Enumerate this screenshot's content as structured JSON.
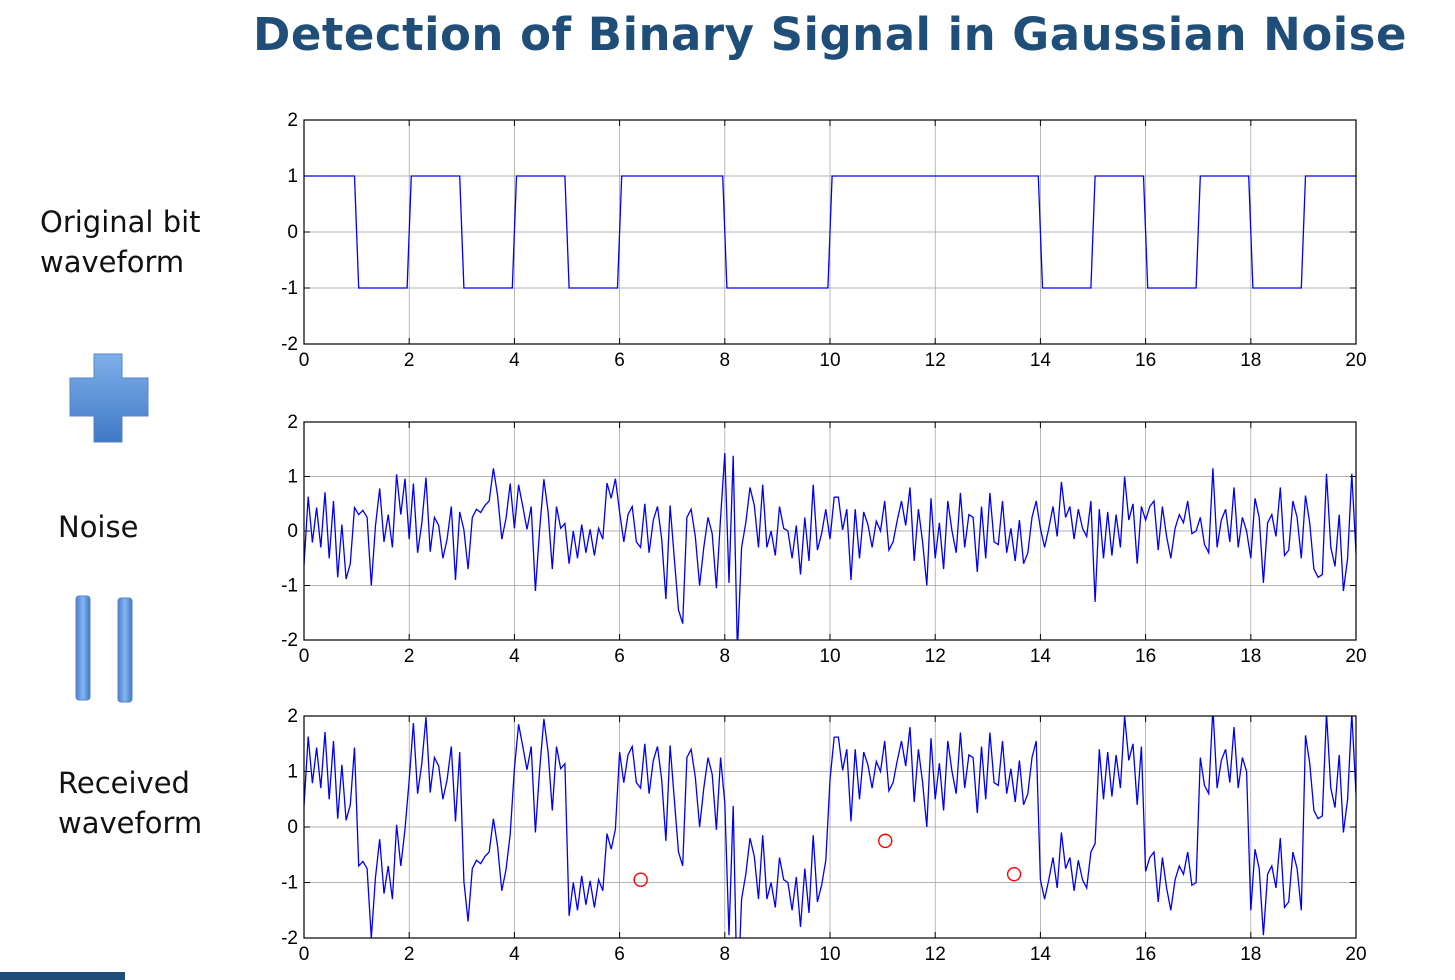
{
  "title": "Detection of Binary Signal in Gaussian Noise",
  "labels": {
    "original_line1": "Original bit",
    "original_line2": "waveform",
    "noise": "Noise",
    "received_line1": "Received",
    "received_line2": "waveform"
  },
  "colors": {
    "title": "#1f4e79",
    "trace": "#0000ee",
    "marker": "#ff0000",
    "symbol": "#5b8fd6"
  },
  "icons": [
    "plus-icon",
    "equals-icon"
  ],
  "chart_data": [
    {
      "type": "line",
      "name": "original",
      "xlim": [
        0,
        20
      ],
      "ylim": [
        -2,
        2
      ],
      "xticks": [
        0,
        2,
        4,
        6,
        8,
        10,
        12,
        14,
        16,
        18,
        20
      ],
      "yticks": [
        2,
        1,
        0,
        -1,
        -2
      ],
      "grid": true,
      "bits": [
        1,
        -1,
        1,
        -1,
        1,
        -1,
        1,
        1,
        -1,
        -1,
        1,
        1,
        1,
        1,
        -1,
        1,
        -1,
        1,
        -1,
        1
      ],
      "x": [
        0,
        0.96,
        1.04,
        1.96,
        2.04,
        2.96,
        3.04,
        3.96,
        4.04,
        4.96,
        5.04,
        5.96,
        6.04,
        7.96,
        8.04,
        9.96,
        10.04,
        13.96,
        14.04,
        14.96,
        15.04,
        15.96,
        16.04,
        16.96,
        17.04,
        17.96,
        18.04,
        18.96,
        19.04,
        20
      ],
      "y": [
        1,
        1,
        -1,
        -1,
        1,
        1,
        -1,
        -1,
        1,
        1,
        -1,
        -1,
        1,
        1,
        -1,
        -1,
        1,
        1,
        -1,
        -1,
        1,
        1,
        -1,
        -1,
        1,
        1,
        -1,
        -1,
        1,
        1
      ]
    },
    {
      "type": "line",
      "name": "noise",
      "xlim": [
        0,
        20
      ],
      "ylim": [
        -2,
        2
      ],
      "xticks": [
        0,
        2,
        4,
        6,
        8,
        10,
        12,
        14,
        16,
        18,
        20
      ],
      "yticks": [
        2,
        1,
        0,
        -1,
        -2
      ],
      "grid": true,
      "x_start": 0,
      "x_step": 0.08,
      "values": [
        -0.62,
        0.63,
        -0.21,
        0.43,
        -0.3,
        0.71,
        -0.5,
        0.55,
        -0.85,
        0.12,
        -0.88,
        -0.6,
        0.43,
        0.3,
        0.38,
        0.25,
        -1.0,
        0.1,
        0.78,
        -0.2,
        0.3,
        -0.3,
        1.04,
        0.3,
        0.96,
        -0.15,
        0.87,
        -0.4,
        0.14,
        0.98,
        -0.38,
        0.25,
        0.1,
        -0.5,
        -0.15,
        0.45,
        -0.9,
        0.35,
        0.02,
        -0.7,
        0.25,
        0.4,
        0.34,
        0.47,
        0.55,
        1.15,
        0.65,
        -0.15,
        0.23,
        0.87,
        0.05,
        0.85,
        0.45,
        0.03,
        0.45,
        -1.1,
        0.02,
        0.95,
        0.35,
        -0.7,
        0.45,
        0.05,
        0.14,
        -0.6,
        0.0,
        -0.5,
        0.12,
        -0.4,
        0.03,
        -0.45,
        0.05,
        -0.15,
        0.88,
        0.6,
        0.96,
        0.35,
        -0.2,
        0.3,
        0.45,
        -0.2,
        -0.3,
        0.5,
        -0.4,
        0.2,
        0.45,
        -0.15,
        -1.25,
        0.47,
        -0.5,
        -1.45,
        -1.7,
        0.25,
        0.4,
        -0.1,
        -1.0,
        -0.3,
        0.25,
        -0.05,
        -1.05,
        0.25,
        1.43,
        -0.95,
        1.38,
        -2.2,
        -0.3,
        0.15,
        0.8,
        0.47,
        -0.3,
        0.85,
        -0.3,
        0.0,
        -0.45,
        0.45,
        0.05,
        0.0,
        -0.5,
        0.1,
        -0.8,
        0.25,
        -0.55,
        0.85,
        -0.35,
        -0.05,
        0.4,
        -0.15,
        0.62,
        0.62,
        0.02,
        0.4,
        -0.9,
        0.4,
        -0.5,
        0.35,
        0.12,
        -0.3,
        0.18,
        0.0,
        0.55,
        -0.35,
        -0.2,
        0.2,
        0.55,
        0.1,
        0.8,
        -0.55,
        0.4,
        -0.2,
        -1.0,
        0.6,
        -0.5,
        0.15,
        -0.7,
        0.55,
        0.0,
        -0.4,
        0.7,
        -0.3,
        0.3,
        0.25,
        -0.75,
        0.45,
        -0.5,
        0.7,
        -0.2,
        -0.25,
        0.55,
        -0.4,
        0.05,
        -0.55,
        0.2,
        -0.6,
        -0.4,
        0.25,
        0.55,
        0.05,
        -0.3,
        0.05,
        0.45,
        -0.1,
        0.9,
        0.25,
        0.45,
        -0.15,
        0.4,
        0.05,
        -0.1,
        0.55,
        -1.3,
        0.4,
        -0.5,
        0.35,
        -0.45,
        0.3,
        -0.3,
        1.0,
        0.2,
        0.5,
        -0.6,
        0.45,
        0.2,
        0.45,
        0.55,
        -0.35,
        0.45,
        -0.1,
        -0.5,
        0.05,
        0.3,
        0.15,
        0.55,
        -0.05,
        0.0,
        0.25,
        -0.25,
        -0.4,
        1.15,
        -0.3,
        0.2,
        0.4,
        -0.2,
        0.8,
        -0.3,
        0.25,
        0.0,
        -0.5,
        0.6,
        0.25,
        -0.95,
        0.15,
        0.3,
        -0.1,
        0.8,
        -0.45,
        -0.35,
        0.55,
        0.25,
        -0.5,
        0.65,
        0.15,
        -0.7,
        -0.85,
        -0.8,
        1.05,
        -0.3,
        -0.65,
        0.3,
        -1.1,
        -0.5,
        1.05,
        -0.4,
        -1.85,
        0.05,
        -0.4,
        0.0,
        0.6,
        0.65,
        0.05,
        0.0,
        0.85,
        -0.4,
        0.1,
        0.05,
        0.65,
        0.0,
        -0.2,
        0.1,
        -0.25,
        -1.05,
        0.1,
        0.3,
        0.5,
        0.15,
        -0.35,
        0.1,
        0.8,
        -0.35,
        0.45,
        0.05,
        0.25,
        -0.05,
        0.1,
        -0.2,
        -0.35,
        0.25,
        0.1,
        -0.15,
        0.05,
        -0.15,
        0.0,
        0.25,
        -0.1,
        0.25,
        0.35,
        -0.45,
        0.3,
        -0.65,
        0.45,
        -0.3,
        0.65,
        -0.05,
        -0.95,
        -0.4,
        0.6,
        -0.25,
        0.0,
        0.55,
        0.05,
        -0.35,
        0.45,
        -0.9,
        -0.1,
        1.15,
        -0.2,
        -1.3,
        0.4,
        0.55,
        -0.2,
        0.95,
        -0.3,
        -0.95,
        0.55,
        0.55,
        -0.1,
        0.7,
        -0.25,
        0.8,
        -0.4,
        -1.45,
        0.1,
        0.0,
        -0.2,
        -0.05,
        -0.05,
        0.0,
        0.15,
        0.35,
        -0.15,
        -0.3,
        -0.4,
        0.0,
        -0.35,
        0.05,
        0.3,
        -0.6,
        0.1,
        0.2,
        0.75,
        -0.5,
        0.95,
        -0.25,
        0.15,
        0.55,
        -0.55,
        0.1,
        0.45,
        -0.2,
        1.05,
        -0.15,
        -0.5,
        -0.4,
        -0.45,
        0.2,
        -0.35,
        -0.05,
        0.85,
        0.8,
        0.55,
        0.7,
        -0.15,
        -0.3,
        0.15,
        0.95,
        -0.4,
        0.75,
        -0.5,
        -0.5,
        -0.4,
        -0.35,
        -0.7,
        -1.15,
        -1.2,
        -0.9,
        0.65,
        -0.7,
        1.1,
        -0.55,
        0.8,
        -0.3,
        -0.7,
        0.5,
        0.45
      ],
      "x_end": 20
    },
    {
      "type": "line",
      "name": "received",
      "xlim": [
        0,
        20
      ],
      "ylim": [
        -2,
        2
      ],
      "xticks": [
        0,
        2,
        4,
        6,
        8,
        10,
        12,
        14,
        16,
        18,
        20
      ],
      "yticks": [
        2,
        1,
        0,
        -1,
        -2
      ],
      "grid": true,
      "definition": "original + noise",
      "error_markers": [
        {
          "x": 6.4,
          "y": -0.95
        },
        {
          "x": 11.05,
          "y": -0.25
        },
        {
          "x": 13.5,
          "y": -0.85
        }
      ]
    }
  ]
}
